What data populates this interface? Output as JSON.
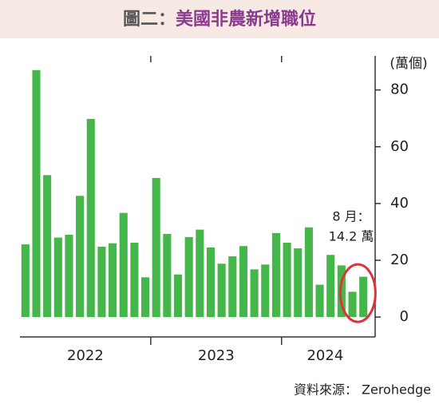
{
  "chart_data": {
    "type": "bar",
    "figure_label": "圖二：",
    "title": "美國非農新增職位",
    "y_label": "(萬個)",
    "source": "資料來源： Zerohedge",
    "annotation": [
      "8 月：",
      "14.2 萬"
    ],
    "categories": [
      null,
      null,
      null,
      null,
      null,
      null,
      "2022",
      null,
      null,
      null,
      null,
      null,
      null,
      null,
      null,
      null,
      null,
      null,
      "2023",
      null,
      null,
      null,
      null,
      null,
      null,
      null,
      null,
      null,
      "2024",
      null,
      null,
      null
    ],
    "values": [
      25.6,
      87,
      50,
      28,
      29,
      42.7,
      69.8,
      24.8,
      26,
      36.7,
      26.2,
      14,
      49,
      29.3,
      15,
      28.2,
      30.8,
      24.5,
      18.8,
      21.4,
      25,
      16.8,
      18.5,
      29.6,
      26.2,
      24.2,
      31.6,
      11.4,
      21.9,
      18.2,
      8.9,
      14.2
    ],
    "color": "#45b649",
    "ylim": [
      -7,
      92
    ],
    "yticks": [
      0,
      20,
      40,
      60,
      80
    ]
  }
}
